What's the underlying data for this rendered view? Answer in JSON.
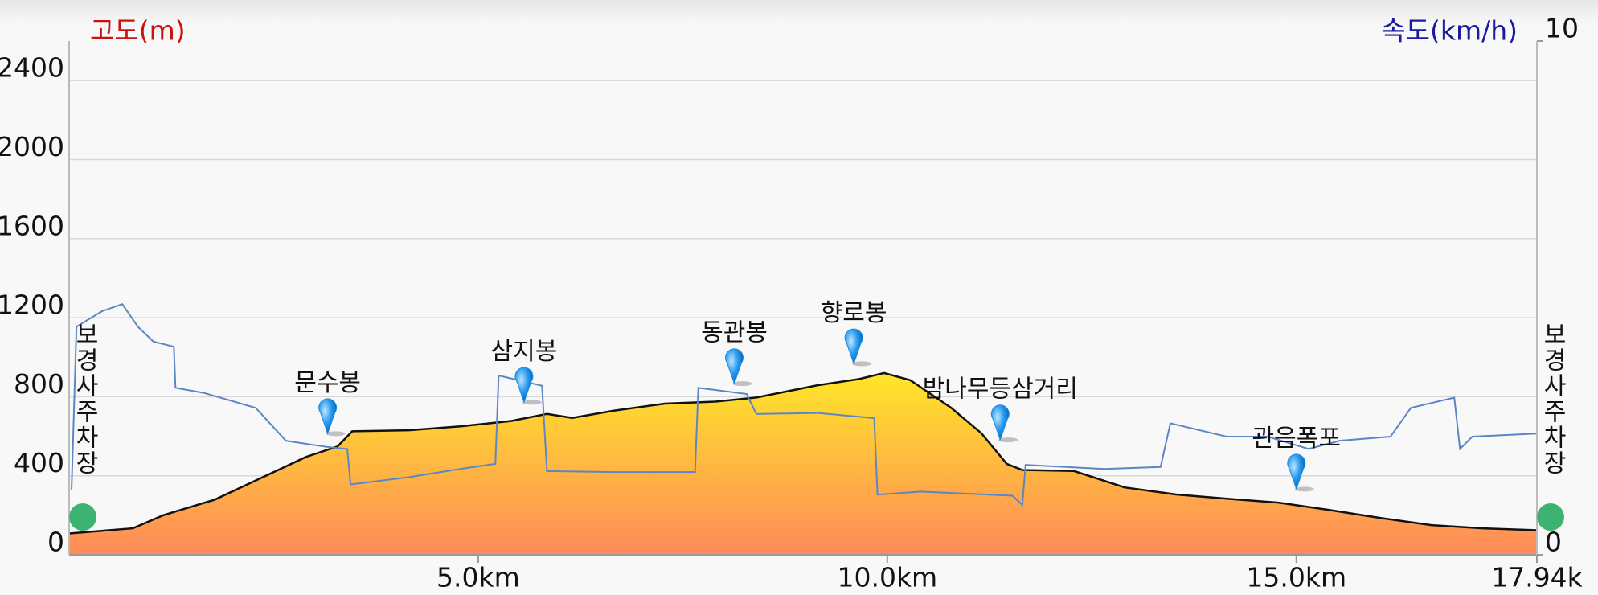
{
  "chart_data": {
    "type": "profile",
    "y_label": "고도(m)",
    "y_label_color": "#cc1111",
    "y2_label": "속도(km/h)",
    "y2_label_color": "#1a1aa0",
    "xlim": [
      0,
      17.94
    ],
    "xticks": [
      {
        "value": 5,
        "label": "5.0km"
      },
      {
        "value": 10,
        "label": "10.0km"
      },
      {
        "value": 15,
        "label": "15.0km"
      },
      {
        "value": 17.94,
        "label": "17.94k"
      }
    ],
    "ylim": [
      0,
      2600
    ],
    "yticks": [
      0,
      400,
      800,
      1200,
      1600,
      2000,
      2400
    ],
    "y2lim": [
      0,
      10
    ],
    "y2ticks": [
      0,
      10
    ],
    "grid": true,
    "series": [
      {
        "type": "area",
        "color": "#ff8a5a",
        "top_color": "#ffe628",
        "x": [
          0,
          0.78,
          1.15,
          1.78,
          2.53,
          2.9,
          3.28,
          3.46,
          4.15,
          4.78,
          5.4,
          5.84,
          6.15,
          6.65,
          7.28,
          7.9,
          8.4,
          9.15,
          9.65,
          9.96,
          10.28,
          10.78,
          11.15,
          11.46,
          11.65,
          12.28,
          12.9,
          13.53,
          14.15,
          14.78,
          15.4,
          16.03,
          16.65,
          17.28,
          17.94
        ],
        "values": [
          108,
          134,
          200,
          279,
          424,
          496,
          548,
          625,
          630,
          650,
          677,
          713,
          693,
          729,
          765,
          775,
          796,
          858,
          889,
          920,
          884,
          744,
          615,
          460,
          429,
          424,
          341,
          305,
          284,
          264,
          227,
          186,
          150,
          134,
          124
        ]
      },
      {
        "type": "line",
        "axis": "y2",
        "color": "#5b86c5",
        "x": [
          0.03,
          0.09,
          0.4,
          0.65,
          0.84,
          1.03,
          1.28,
          1.3,
          1.65,
          2.28,
          2.65,
          3.15,
          3.4,
          3.44,
          4.15,
          4.78,
          5.21,
          5.25,
          5.78,
          5.84,
          6.65,
          7.65,
          7.69,
          8.28,
          8.4,
          9.15,
          9.84,
          9.88,
          10.4,
          11.53,
          11.65,
          11.69,
          12.65,
          13.34,
          13.46,
          14.15,
          14.65,
          15.15,
          15.53,
          16.15,
          16.4,
          16.93,
          17.0,
          17.15,
          17.94
        ],
        "values": [
          1.27,
          4.44,
          4.74,
          4.88,
          4.44,
          4.15,
          4.05,
          3.25,
          3.15,
          2.86,
          2.22,
          2.1,
          2.06,
          1.37,
          1.51,
          1.67,
          1.77,
          3.49,
          3.29,
          1.63,
          1.61,
          1.61,
          3.25,
          3.13,
          2.74,
          2.76,
          2.66,
          1.17,
          1.23,
          1.15,
          0.97,
          1.75,
          1.67,
          1.71,
          2.56,
          2.3,
          2.3,
          2.06,
          2.22,
          2.3,
          2.86,
          3.06,
          2.06,
          2.3,
          2.36
        ]
      }
    ],
    "endpoints": [
      {
        "name": "보경사주차장",
        "x": 0
      },
      {
        "name": "보경사주차장",
        "x": 17.94
      }
    ],
    "endpoint_color": "#3cb371",
    "waypoints": [
      {
        "name": "문수봉",
        "x": 3.16
      },
      {
        "name": "삼지봉",
        "x": 5.56
      },
      {
        "name": "동관봉",
        "x": 8.13
      },
      {
        "name": "향로봉",
        "x": 9.59
      },
      {
        "name": "밤나무등삼거리",
        "x": 11.38
      },
      {
        "name": "관음폭포",
        "x": 15.0
      }
    ],
    "waypoint_color": "#1a8fe0"
  }
}
